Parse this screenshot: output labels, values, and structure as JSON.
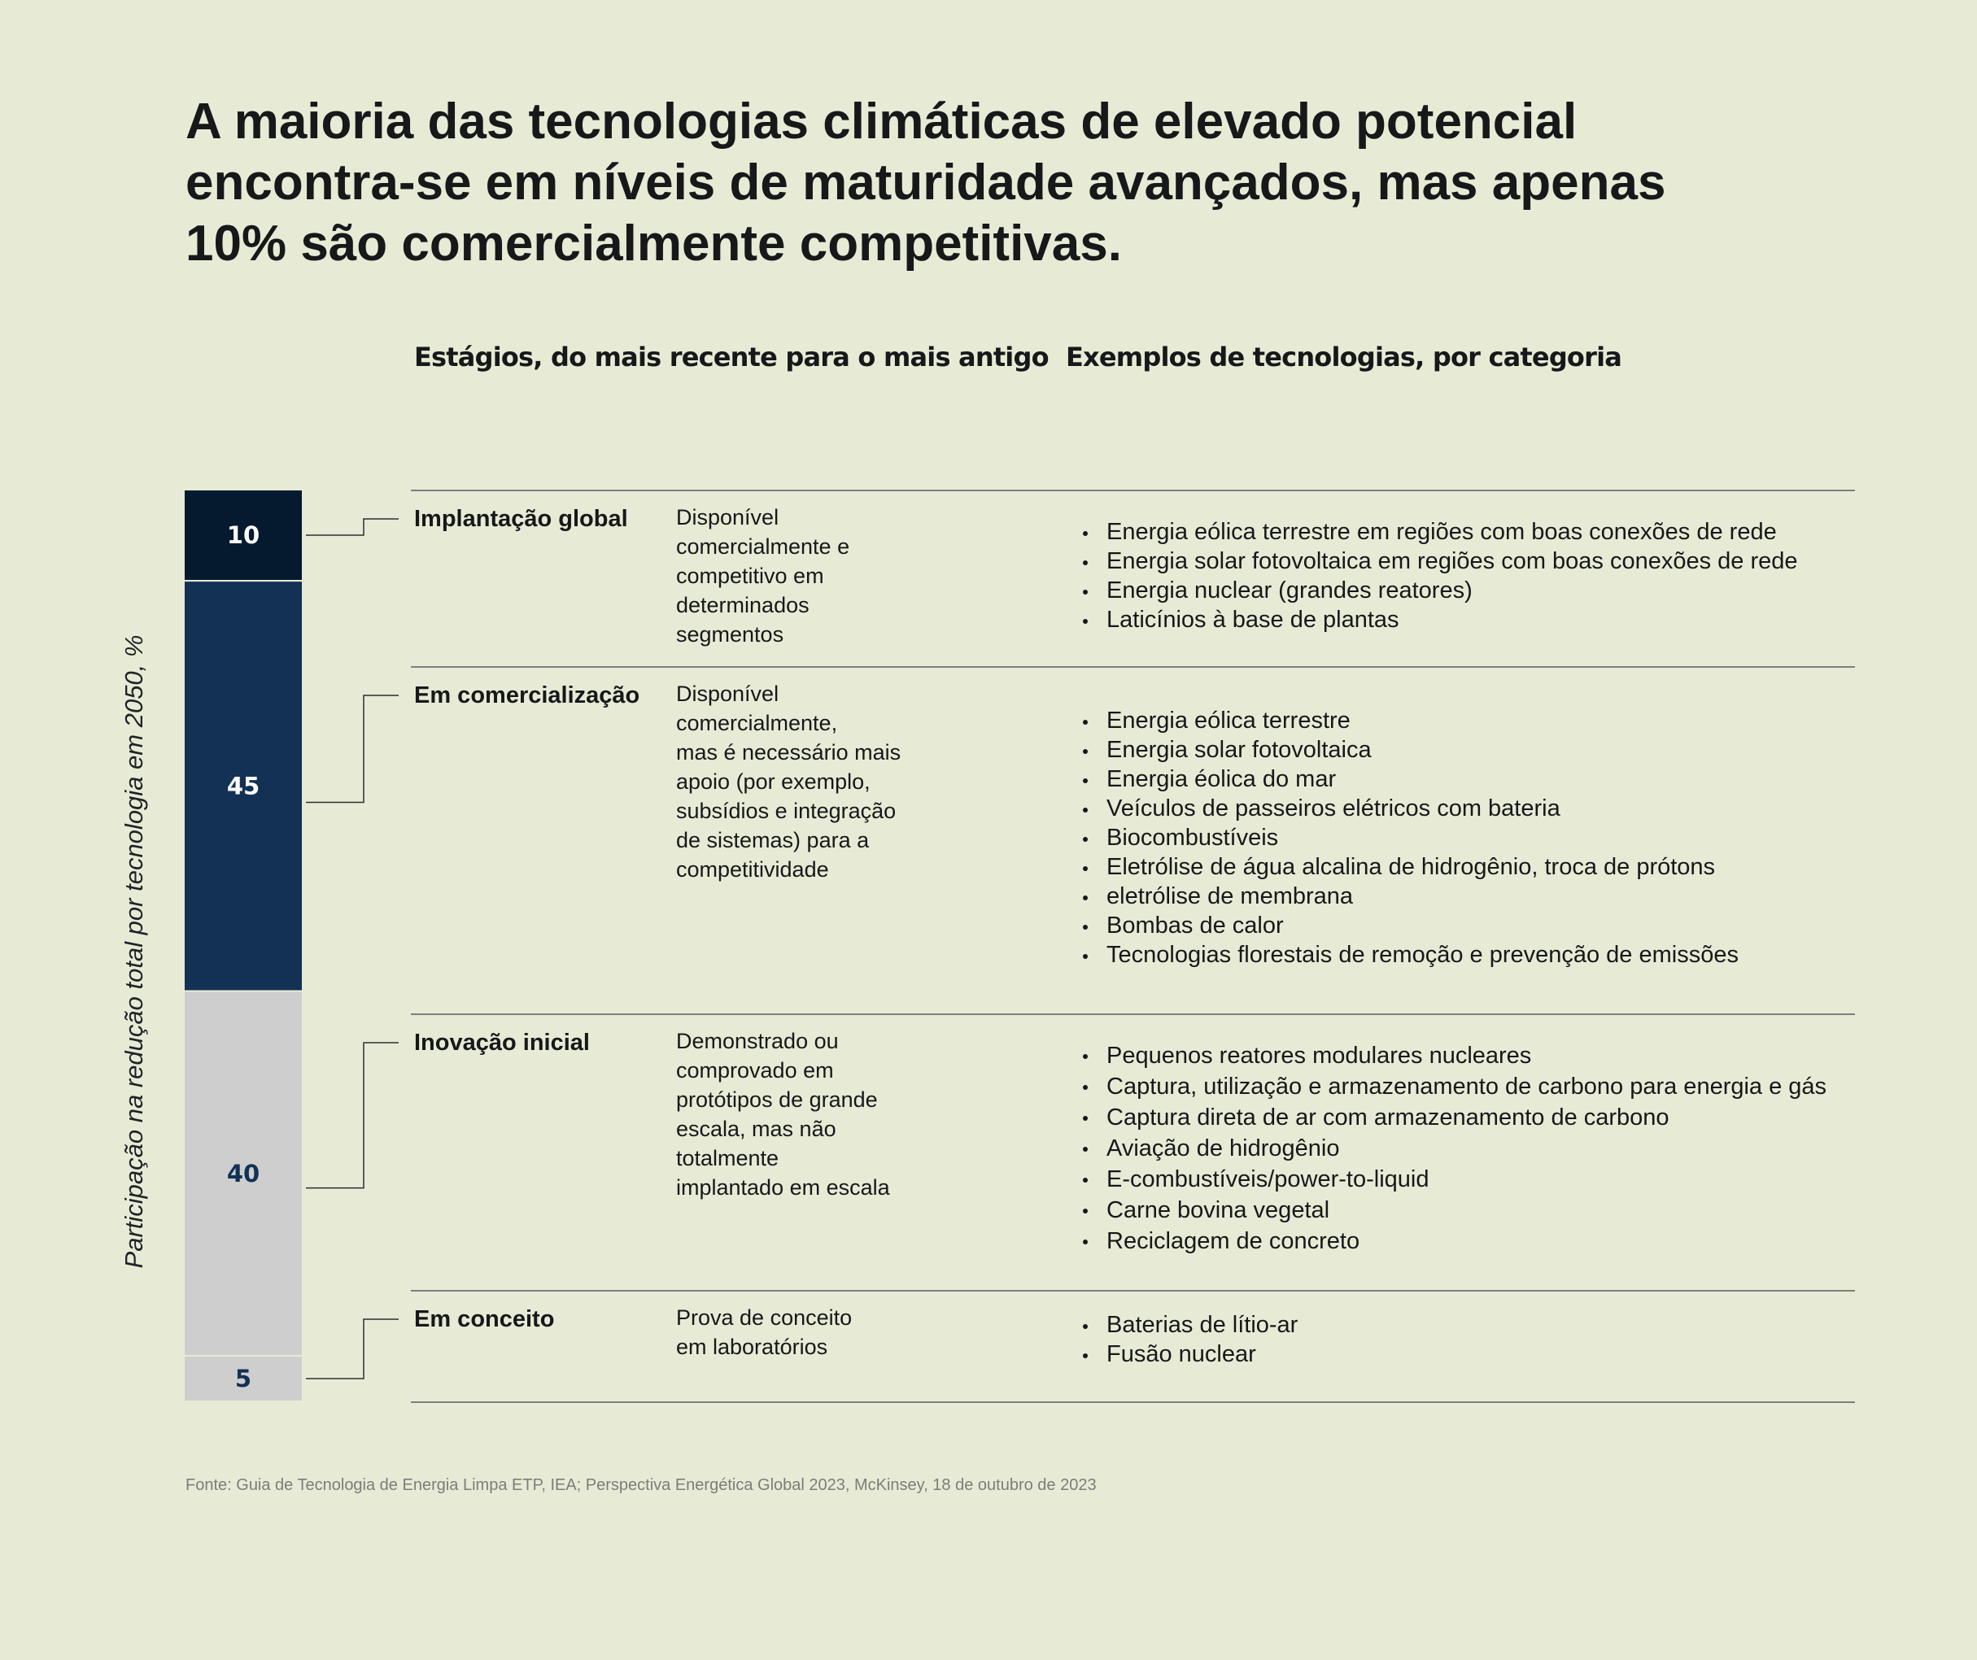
{
  "title": "A maioria das tecnologias climáticas de elevado potencial encontra-se em níveis de maturidade avançados, mas apenas 10% são comercialmente competitivas.",
  "headers": {
    "stages": "Estágios, do mais recente para o mais antigo",
    "examples": "Exemplos de tecnologias, por categoria"
  },
  "source": "Fonte: Guia de Tecnologia de Energia Limpa ETP, IEA; Perspectiva Energética Global 2023, McKinsey, 18 de outubro de 2023",
  "colors": {
    "background": "#e7ebd5",
    "bar_darkest": "#051a2e",
    "bar_dark": "#123154",
    "bar_light": "#cecece",
    "label_light": "#ffffff",
    "label_dark": "#123154"
  },
  "chart_data": {
    "type": "bar",
    "orientation": "vertical-stacked",
    "ylabel": "Participação na redução total por tecnologia em 2050, %",
    "total": 100,
    "segments": [
      {
        "stage": "Implantação global",
        "value": 10,
        "label": "10",
        "color": "#051a2e",
        "label_color": "#ffffff"
      },
      {
        "stage": "Em comercialização",
        "value": 45,
        "label": "45",
        "color": "#123154",
        "label_color": "#ffffff"
      },
      {
        "stage": "Inovação inicial",
        "value": 40,
        "label": "40",
        "color": "#cecece",
        "label_color": "#123154"
      },
      {
        "stage": "Em conceito",
        "value": 5,
        "label": "5",
        "color": "#cecece",
        "label_color": "#123154"
      }
    ]
  },
  "stages": [
    {
      "name": "Implantação global",
      "description": [
        "Disponível",
        "comercialmente e",
        "competitivo em",
        "determinados",
        "segmentos"
      ],
      "examples": [
        "Energia eólica terrestre em regiões com boas conexões de rede",
        "Energia solar fotovoltaica em regiões com boas conexões de rede",
        "Energia nuclear (grandes reatores)",
        "Laticínios à base de plantas"
      ]
    },
    {
      "name": "Em comercialização",
      "description": [
        "Disponível",
        "comercialmente,",
        "mas é necessário mais",
        "apoio (por exemplo,",
        "subsídios e integração",
        "de sistemas) para a",
        "competitividade"
      ],
      "examples": [
        "Energia eólica terrestre",
        "Energia solar fotovoltaica",
        "Energia éolica do mar",
        "Veículos de passeiros elétricos com bateria",
        "Biocombustíveis",
        "Eletrólise de água alcalina de hidrogênio, troca de prótons",
        "eletrólise de membrana",
        "Bombas de calor",
        "Tecnologias florestais de remoção e prevenção de emissões"
      ]
    },
    {
      "name": "Inovação inicial",
      "description": [
        "Demonstrado ou",
        "comprovado em",
        "protótipos de grande",
        "escala, mas não",
        "totalmente",
        "implantado em escala"
      ],
      "examples": [
        "Pequenos reatores modulares nucleares",
        "Captura, utilização e armazenamento de carbono para energia e gás",
        "Captura direta de ar com armazenamento de carbono",
        "Aviação de hidrogênio",
        "E-combustíveis/power-to-liquid",
        "Carne bovina vegetal",
        "Reciclagem de concreto"
      ]
    },
    {
      "name": "Em conceito",
      "description": [
        "Prova de conceito",
        "em laboratórios"
      ],
      "examples": [
        "Baterias de lítio-ar",
        "Fusão nuclear"
      ]
    }
  ]
}
